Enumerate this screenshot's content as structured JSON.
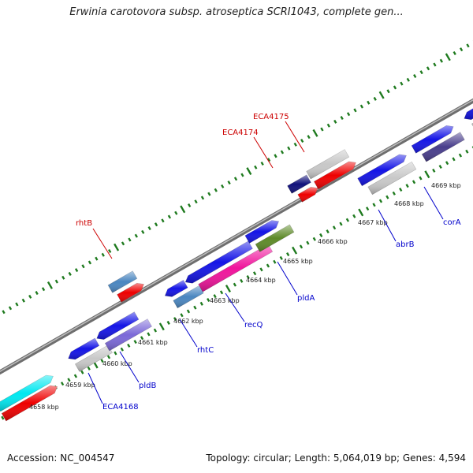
{
  "title": "Erwinia carotovora subsp. atroseptica SCRI1043, complete gen...",
  "footer": {
    "accession": "Accession: NC_004547",
    "summary": "Topology: circular; Length: 5,064,019 bp; Genes: 4,594"
  },
  "colors": {
    "backbone": "#8c8c8c",
    "ticks": "#1e7a1e",
    "label_forward": "#cc0000",
    "label_reverse": "#0000cc",
    "gene_blue": "#1414e6",
    "gene_red": "#ee0000",
    "gene_gray": "#c8c8c8",
    "gene_steel": "#4a86c0",
    "gene_slate": "#7b68d8",
    "gene_magenta": "#f0149c",
    "gene_olive": "#5d8a28",
    "gene_navy": "#10107a",
    "gene_darkslate": "#483d8b",
    "gene_cyan": "#00e8f0"
  },
  "scale_labels": [
    "4658 kbp",
    "4659 kbp",
    "4660 kbp",
    "4661 kbp",
    "4662 kbp",
    "4663 kbp",
    "4664 kbp",
    "4665 kbp",
    "4666 kbp",
    "4667 kbp",
    "4668 kbp",
    "4669 kbp"
  ],
  "forward_labels": [
    "rhtB",
    "ECA4174",
    "ECA4175"
  ],
  "reverse_labels": [
    "ECA4168",
    "pldB",
    "rhtC",
    "recQ",
    "pldA",
    "abrB",
    "corA"
  ]
}
